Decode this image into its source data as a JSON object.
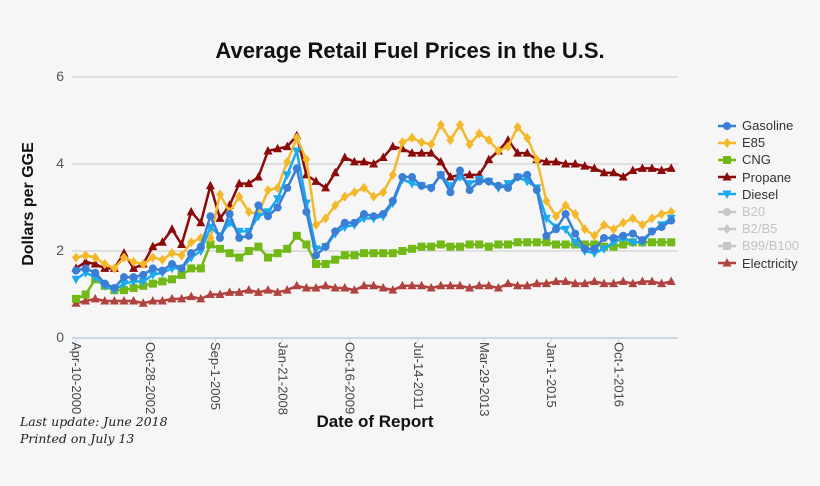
{
  "chart_data": {
    "type": "line",
    "title": "Average Retail Fuel Prices in the U.S.",
    "xlabel": "Date of Report",
    "ylabel": "Dollars per GGE",
    "ylim": [
      0,
      6
    ],
    "yticks": [
      0,
      2,
      4,
      6
    ],
    "grid": true,
    "legend": "right",
    "x_tick_labels": [
      "Apr-10-2000",
      "Oct-28-2002",
      "Sep-1-2005",
      "Jan-21-2008",
      "Oct-16-2009",
      "Jul-14-2011",
      "Mar-29-2013",
      "Jan-1-2015",
      "Oct-1-2016"
    ],
    "x_tick_report_index": [
      0,
      7.7,
      14.5,
      21.5,
      28.5,
      35.6,
      42.5,
      49.5,
      56.5
    ],
    "series": [
      {
        "name": "Gasoline",
        "color": "#3a7fd5",
        "marker": "circle",
        "active": true,
        "values": [
          1.55,
          1.6,
          1.5,
          1.25,
          1.15,
          1.4,
          1.4,
          1.45,
          1.6,
          1.55,
          1.7,
          1.6,
          1.95,
          2.1,
          2.8,
          2.3,
          2.85,
          2.3,
          2.35,
          3.05,
          2.8,
          3.0,
          3.45,
          3.9,
          2.9,
          1.9,
          2.1,
          2.45,
          2.65,
          2.65,
          2.85,
          2.8,
          2.85,
          3.15,
          3.7,
          3.7,
          3.5,
          3.45,
          3.75,
          3.35,
          3.85,
          3.4,
          3.6,
          3.6,
          3.5,
          3.45,
          3.7,
          3.75,
          3.4,
          2.35,
          2.5,
          2.85,
          2.4,
          2.05,
          2.05,
          2.3,
          2.3,
          2.35,
          2.4,
          2.25,
          2.45,
          2.55,
          2.7
        ]
      },
      {
        "name": "E85",
        "color": "#f4b92a",
        "marker": "diamond",
        "active": true,
        "values": [
          1.85,
          1.9,
          1.85,
          1.7,
          1.6,
          1.85,
          1.75,
          1.7,
          1.85,
          1.8,
          1.95,
          1.9,
          2.2,
          2.3,
          2.3,
          3.3,
          2.9,
          3.25,
          2.9,
          2.85,
          3.4,
          3.45,
          4.05,
          4.6,
          4.1,
          2.6,
          2.75,
          3.05,
          3.25,
          3.35,
          3.45,
          3.25,
          3.35,
          3.75,
          4.5,
          4.6,
          4.5,
          4.45,
          4.9,
          4.55,
          4.9,
          4.45,
          4.7,
          4.55,
          4.3,
          4.4,
          4.85,
          4.6,
          4.1,
          3.15,
          2.8,
          3.05,
          2.85,
          2.5,
          2.35,
          2.6,
          2.5,
          2.65,
          2.75,
          2.6,
          2.75,
          2.85,
          2.9
        ]
      },
      {
        "name": "CNG",
        "color": "#72b816",
        "marker": "square",
        "active": true,
        "values": [
          0.9,
          1.0,
          1.35,
          1.2,
          1.1,
          1.1,
          1.15,
          1.2,
          1.25,
          1.3,
          1.35,
          1.45,
          1.6,
          1.6,
          2.15,
          2.05,
          1.95,
          1.85,
          2.0,
          2.1,
          1.85,
          1.95,
          2.05,
          2.35,
          2.15,
          1.7,
          1.7,
          1.8,
          1.9,
          1.9,
          1.95,
          1.95,
          1.95,
          1.95,
          2.0,
          2.05,
          2.1,
          2.1,
          2.15,
          2.1,
          2.1,
          2.15,
          2.15,
          2.1,
          2.15,
          2.15,
          2.2,
          2.2,
          2.2,
          2.2,
          2.15,
          2.15,
          2.15,
          2.15,
          2.15,
          2.1,
          2.1,
          2.15,
          2.2,
          2.2,
          2.2,
          2.2,
          2.2
        ]
      },
      {
        "name": "Propane",
        "color": "#8b0a0a",
        "marker": "triangle",
        "active": true,
        "values": [
          1.6,
          1.75,
          1.7,
          1.6,
          1.6,
          1.95,
          1.6,
          1.7,
          2.1,
          2.2,
          2.5,
          2.15,
          2.9,
          2.65,
          3.5,
          2.75,
          3.05,
          3.55,
          3.55,
          3.7,
          4.3,
          4.35,
          4.4,
          4.65,
          3.75,
          3.6,
          3.45,
          3.8,
          4.15,
          4.05,
          4.05,
          4.0,
          4.15,
          4.4,
          4.35,
          4.25,
          4.25,
          4.25,
          4.05,
          3.7,
          3.75,
          3.75,
          3.75,
          4.1,
          4.3,
          4.55,
          4.25,
          4.25,
          4.1,
          4.05,
          4.05,
          4.0,
          4.0,
          3.95,
          3.9,
          3.8,
          3.8,
          3.7,
          3.85,
          3.9,
          3.9,
          3.85,
          3.9
        ]
      },
      {
        "name": "Diesel",
        "color": "#19aaf0",
        "marker": "triangle-down",
        "active": true,
        "values": [
          1.35,
          1.5,
          1.4,
          1.2,
          1.1,
          1.25,
          1.3,
          1.3,
          1.45,
          1.5,
          1.6,
          1.6,
          1.85,
          2.0,
          2.55,
          2.35,
          2.65,
          2.45,
          2.45,
          2.8,
          2.9,
          3.2,
          3.75,
          4.3,
          3.1,
          2.05,
          2.1,
          2.4,
          2.55,
          2.6,
          2.75,
          2.75,
          2.8,
          3.1,
          3.65,
          3.55,
          3.5,
          3.45,
          3.75,
          3.5,
          3.7,
          3.55,
          3.65,
          3.6,
          3.45,
          3.55,
          3.7,
          3.6,
          3.45,
          2.75,
          2.55,
          2.5,
          2.2,
          2.0,
          1.95,
          2.05,
          2.2,
          2.3,
          2.2,
          2.2,
          2.45,
          2.6,
          2.75
        ]
      },
      {
        "name": "B20",
        "color": "#c8c8c8",
        "marker": "circle",
        "active": false,
        "values": []
      },
      {
        "name": "B2/B5",
        "color": "#c8c8c8",
        "marker": "diamond",
        "active": false,
        "values": []
      },
      {
        "name": "B99/B100",
        "color": "#c8c8c8",
        "marker": "square",
        "active": false,
        "values": []
      },
      {
        "name": "Electricity",
        "color": "#b0433f",
        "marker": "triangle",
        "active": true,
        "values": [
          0.8,
          0.85,
          0.9,
          0.85,
          0.85,
          0.85,
          0.85,
          0.8,
          0.85,
          0.85,
          0.9,
          0.9,
          0.95,
          0.9,
          1.0,
          1.0,
          1.05,
          1.05,
          1.1,
          1.05,
          1.1,
          1.05,
          1.1,
          1.2,
          1.15,
          1.15,
          1.2,
          1.15,
          1.15,
          1.1,
          1.2,
          1.2,
          1.15,
          1.1,
          1.2,
          1.2,
          1.2,
          1.15,
          1.2,
          1.2,
          1.2,
          1.15,
          1.2,
          1.2,
          1.15,
          1.25,
          1.2,
          1.2,
          1.25,
          1.25,
          1.3,
          1.3,
          1.25,
          1.25,
          1.3,
          1.25,
          1.25,
          1.3,
          1.25,
          1.3,
          1.3,
          1.25,
          1.3
        ]
      }
    ]
  },
  "footer": {
    "last_update": "Last update: June 2018",
    "printed": "Printed on July 13"
  }
}
